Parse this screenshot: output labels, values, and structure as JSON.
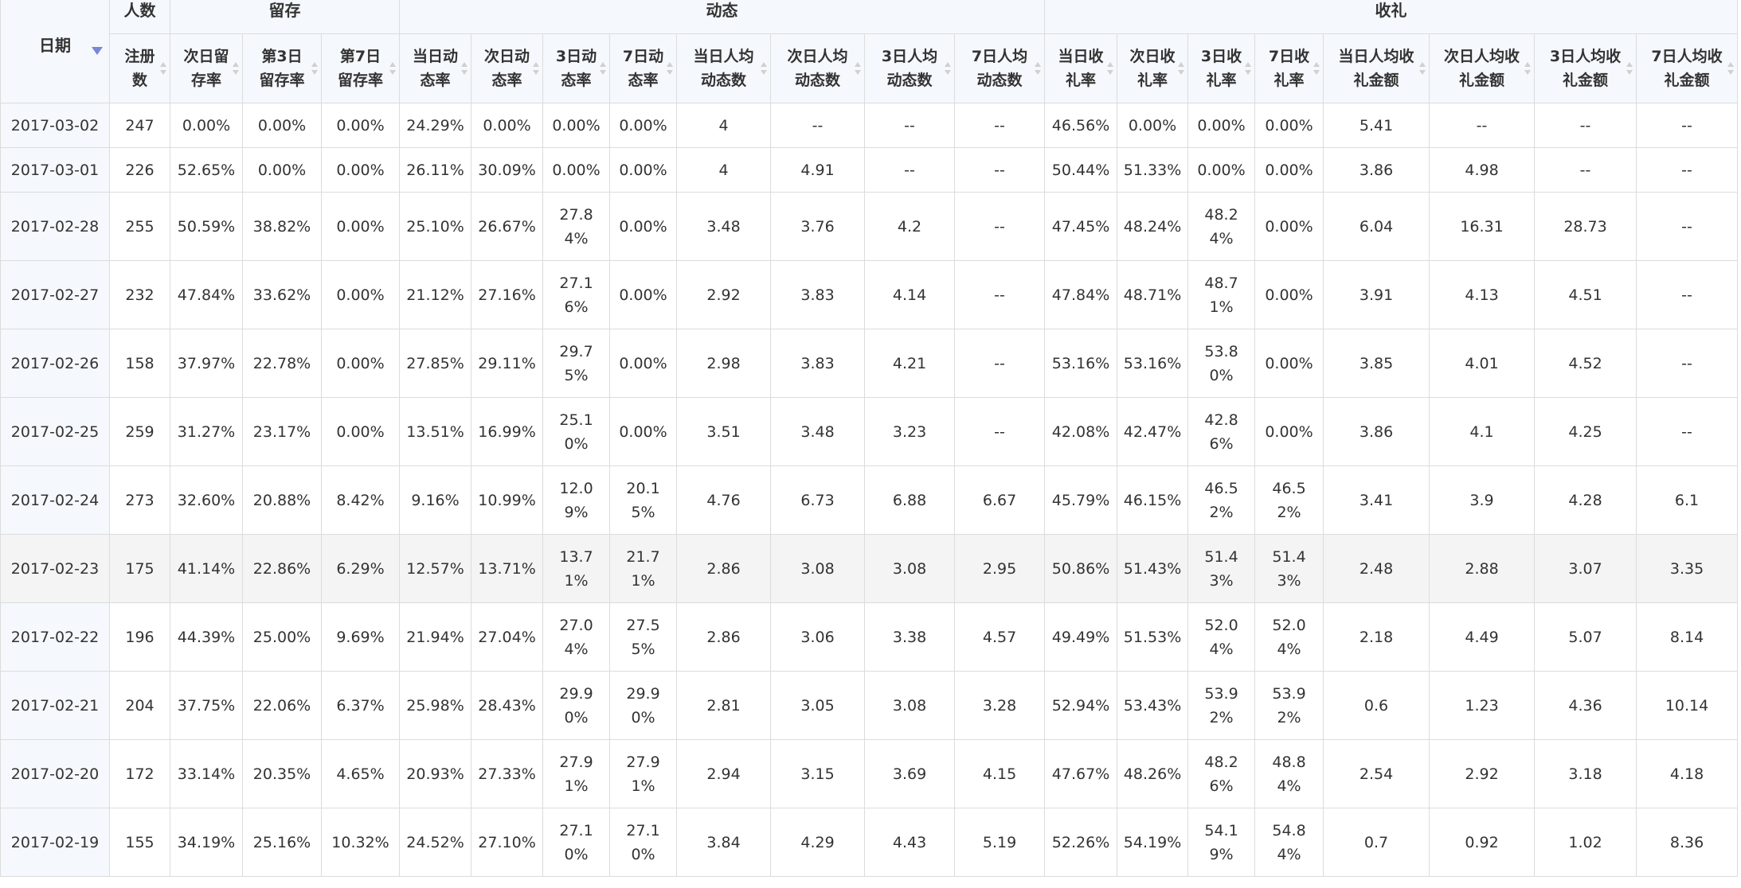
{
  "header": {
    "date": "日期",
    "groups": {
      "users": "人数",
      "retention": "留存",
      "activity": "动态",
      "gifts": "收礼"
    },
    "columns": [
      "注册数",
      "次日留存率",
      "第3日留存率",
      "第7日留存率",
      "当日动态率",
      "次日动态率",
      "3日动态率",
      "7日动态率",
      "当日人均动态数",
      "次日人均动态数",
      "3日人均动态数",
      "7日人均动态数",
      "当日收礼率",
      "次日收礼率",
      "3日收礼率",
      "7日收礼率",
      "当日人均收礼金额",
      "次日人均收礼金额",
      "3日人均收礼金额",
      "7日人均收礼金额"
    ]
  },
  "rows": [
    {
      "date": "2017-03-02",
      "cells": [
        "247",
        "0.00%",
        "0.00%",
        "0.00%",
        "24.29%",
        "0.00%",
        "0.00%",
        "0.00%",
        "4",
        "--",
        "--",
        "--",
        "46.56%",
        "0.00%",
        "0.00%",
        "0.00%",
        "5.41",
        "--",
        "--",
        "--"
      ]
    },
    {
      "date": "2017-03-01",
      "cells": [
        "226",
        "52.65%",
        "0.00%",
        "0.00%",
        "26.11%",
        "30.09%",
        "0.00%",
        "0.00%",
        "4",
        "4.91",
        "--",
        "--",
        "50.44%",
        "51.33%",
        "0.00%",
        "0.00%",
        "3.86",
        "4.98",
        "--",
        "--"
      ]
    },
    {
      "date": "2017-02-28",
      "cells": [
        "255",
        "50.59%",
        "38.82%",
        "0.00%",
        "25.10%",
        "26.67%",
        "27.84%",
        "0.00%",
        "3.48",
        "3.76",
        "4.2",
        "--",
        "47.45%",
        "48.24%",
        "48.24%",
        "0.00%",
        "6.04",
        "16.31",
        "28.73",
        "--"
      ]
    },
    {
      "date": "2017-02-27",
      "cells": [
        "232",
        "47.84%",
        "33.62%",
        "0.00%",
        "21.12%",
        "27.16%",
        "27.16%",
        "0.00%",
        "2.92",
        "3.83",
        "4.14",
        "--",
        "47.84%",
        "48.71%",
        "48.71%",
        "0.00%",
        "3.91",
        "4.13",
        "4.51",
        "--"
      ]
    },
    {
      "date": "2017-02-26",
      "cells": [
        "158",
        "37.97%",
        "22.78%",
        "0.00%",
        "27.85%",
        "29.11%",
        "29.75%",
        "0.00%",
        "2.98",
        "3.83",
        "4.21",
        "--",
        "53.16%",
        "53.16%",
        "53.80%",
        "0.00%",
        "3.85",
        "4.01",
        "4.52",
        "--"
      ]
    },
    {
      "date": "2017-02-25",
      "cells": [
        "259",
        "31.27%",
        "23.17%",
        "0.00%",
        "13.51%",
        "16.99%",
        "25.10%",
        "0.00%",
        "3.51",
        "3.48",
        "3.23",
        "--",
        "42.08%",
        "42.47%",
        "42.86%",
        "0.00%",
        "3.86",
        "4.1",
        "4.25",
        "--"
      ]
    },
    {
      "date": "2017-02-24",
      "cells": [
        "273",
        "32.60%",
        "20.88%",
        "8.42%",
        "9.16%",
        "10.99%",
        "12.09%",
        "20.15%",
        "4.76",
        "6.73",
        "6.88",
        "6.67",
        "45.79%",
        "46.15%",
        "46.52%",
        "46.52%",
        "3.41",
        "3.9",
        "4.28",
        "6.1"
      ]
    },
    {
      "date": "2017-02-23",
      "cells": [
        "175",
        "41.14%",
        "22.86%",
        "6.29%",
        "12.57%",
        "13.71%",
        "13.71%",
        "21.71%",
        "2.86",
        "3.08",
        "3.08",
        "2.95",
        "50.86%",
        "51.43%",
        "51.43%",
        "51.43%",
        "2.48",
        "2.88",
        "3.07",
        "3.35"
      ]
    },
    {
      "date": "2017-02-22",
      "cells": [
        "196",
        "44.39%",
        "25.00%",
        "9.69%",
        "21.94%",
        "27.04%",
        "27.04%",
        "27.55%",
        "2.86",
        "3.06",
        "3.38",
        "4.57",
        "49.49%",
        "51.53%",
        "52.04%",
        "52.04%",
        "2.18",
        "4.49",
        "5.07",
        "8.14"
      ]
    },
    {
      "date": "2017-02-21",
      "cells": [
        "204",
        "37.75%",
        "22.06%",
        "6.37%",
        "25.98%",
        "28.43%",
        "29.90%",
        "29.90%",
        "2.81",
        "3.05",
        "3.08",
        "3.28",
        "52.94%",
        "53.43%",
        "53.92%",
        "53.92%",
        "0.6",
        "1.23",
        "4.36",
        "10.14"
      ]
    },
    {
      "date": "2017-02-20",
      "cells": [
        "172",
        "33.14%",
        "20.35%",
        "4.65%",
        "20.93%",
        "27.33%",
        "27.91%",
        "27.91%",
        "2.94",
        "3.15",
        "3.69",
        "4.15",
        "47.67%",
        "48.26%",
        "48.26%",
        "48.84%",
        "2.54",
        "2.92",
        "3.18",
        "4.18"
      ]
    },
    {
      "date": "2017-02-19",
      "cells": [
        "155",
        "34.19%",
        "25.16%",
        "10.32%",
        "24.52%",
        "27.10%",
        "27.10%",
        "27.10%",
        "3.84",
        "4.29",
        "4.43",
        "5.19",
        "52.26%",
        "54.19%",
        "54.19%",
        "54.84%",
        "0.7",
        "0.92",
        "1.02",
        "8.36"
      ]
    }
  ]
}
